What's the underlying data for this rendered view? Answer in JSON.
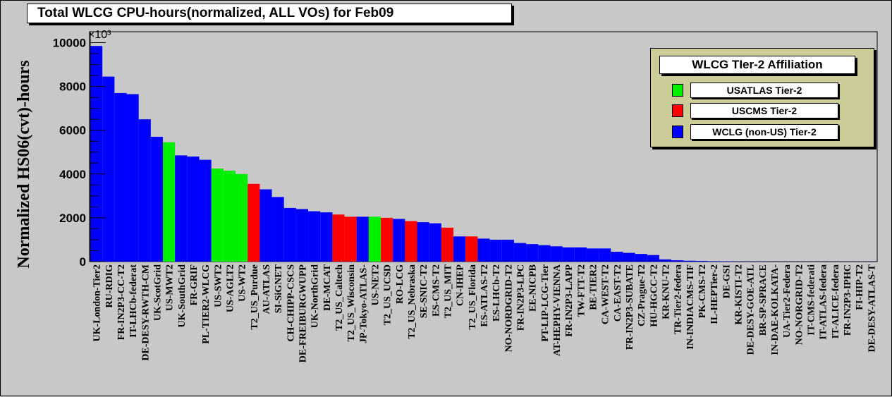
{
  "title": "Total WLCG CPU-hours(normalized, ALL VOs) for Feb09",
  "colors": {
    "USATLAS": "#00ee00",
    "USCMS": "#ff0000",
    "WCLG": "#0000ff",
    "frame_bg": "#c8c8c8",
    "legend_bg": "#cccc99"
  },
  "legend": {
    "title": "WLCG TIer-2 Affiliation",
    "items": [
      {
        "label": "USATLAS Tier-2",
        "group": "USATLAS"
      },
      {
        "label": "USCMS Tier-2",
        "group": "USCMS"
      },
      {
        "label": "WCLG (non-US) Tier-2",
        "group": "WCLG"
      }
    ]
  },
  "chart_data": {
    "type": "bar",
    "title": "Total WLCG CPU-hours(normalized, ALL VOs) for Feb09",
    "ylabel": "Normalized HS06(cvt)-hours",
    "yscale_label": "×10³",
    "ylim": [
      0,
      10500
    ],
    "yticks": [
      0,
      2000,
      4000,
      6000,
      8000,
      10000
    ],
    "grid": false,
    "legend_position": "top-right",
    "categories": [
      "UK-London-Tier2",
      "RU-RDIG",
      "FR-IN2P3-CC-T2",
      "IT-LHCb-federat",
      "DE-DESY-RWTH-CM",
      "UK-ScotGrid",
      "US-MWT2",
      "UK-SouthGrid",
      "FR-GRIF",
      "PL-TIER2-WLCG",
      "US-SWT2",
      "US-AGLT2",
      "US-WT2",
      "T2_US_Purdue",
      "AU-ATLAS",
      "SI-SiGNET",
      "CH-CHIPP-CSCS",
      "DE-FREIBURGWUPP",
      "UK-NorthGrid",
      "DE-MCAT",
      "T2_US_Caltech",
      "T2_US_Wisconsin",
      "JP-Tokyo-ATLAS-",
      "US-NET2",
      "T2_US_UCSD",
      "RO-LCG",
      "T2_US_Nebraska",
      "SE-SNIC-T2",
      "ES-CMS-T2",
      "T2_US_MIT",
      "CN-IHEP",
      "T2_US_Florida",
      "ES-ATLAS-T2",
      "ES-LHCb-T2",
      "NO-NORDGRID-T2",
      "FR-IN2P3-LPC",
      "EE-NICPB",
      "PT-LIP-LCG-Tier",
      "AT-HEPHY-VIENNA",
      "FR-IN2P3-LAPP",
      "TW-FTT-T2",
      "BE-TIER2",
      "CA-WEST-T2",
      "CA-EAST-T2",
      "FR-IN2P3-SUBATE",
      "CZ-Prague-T2",
      "HU-HGCC-T2",
      "KR-KNU-T2",
      "TR-Tier2-federa",
      "IN-INDIACMS-TIF",
      "PK-CMS-T2",
      "IL-HEPTier-2",
      "DE-GSI",
      "KR-KISTI-T2",
      "DE-DESY-GOE-ATL",
      "BR-SP-SPRACE",
      "IN-DAE-KOLKATA-",
      "UA-Tier2-Federa",
      "NO-NORGRID-T2",
      "IT-CMS-federati",
      "IT-ATLAS-federa",
      "IT-ALICE-federa",
      "FR-IN2P3-IPHC",
      "FI-HIP-T2",
      "DE-DESY-ATLAS-T"
    ],
    "values": [
      9850,
      8450,
      7700,
      7650,
      6500,
      5700,
      5450,
      4850,
      4800,
      4650,
      4250,
      4150,
      4000,
      3550,
      3300,
      2950,
      2450,
      2400,
      2300,
      2250,
      2150,
      2050,
      2050,
      2050,
      2000,
      1950,
      1850,
      1800,
      1750,
      1550,
      1150,
      1150,
      1050,
      1000,
      1000,
      850,
      800,
      750,
      700,
      650,
      650,
      600,
      600,
      450,
      400,
      350,
      300,
      100,
      60,
      40,
      30,
      20,
      15,
      10,
      10,
      10,
      5,
      5,
      5,
      5,
      5,
      5,
      5,
      5,
      5
    ],
    "groups": [
      "WCLG",
      "WCLG",
      "WCLG",
      "WCLG",
      "WCLG",
      "WCLG",
      "USATLAS",
      "WCLG",
      "WCLG",
      "WCLG",
      "USATLAS",
      "USATLAS",
      "USATLAS",
      "USCMS",
      "WCLG",
      "WCLG",
      "WCLG",
      "WCLG",
      "WCLG",
      "WCLG",
      "USCMS",
      "USCMS",
      "WCLG",
      "USATLAS",
      "USCMS",
      "WCLG",
      "USCMS",
      "WCLG",
      "WCLG",
      "USCMS",
      "WCLG",
      "USCMS",
      "WCLG",
      "WCLG",
      "WCLG",
      "WCLG",
      "WCLG",
      "WCLG",
      "WCLG",
      "WCLG",
      "WCLG",
      "WCLG",
      "WCLG",
      "WCLG",
      "WCLG",
      "WCLG",
      "WCLG",
      "WCLG",
      "WCLG",
      "WCLG",
      "WCLG",
      "WCLG",
      "WCLG",
      "WCLG",
      "WCLG",
      "WCLG",
      "WCLG",
      "WCLG",
      "WCLG",
      "WCLG",
      "WCLG",
      "WCLG",
      "WCLG",
      "WCLG",
      "WCLG"
    ]
  }
}
